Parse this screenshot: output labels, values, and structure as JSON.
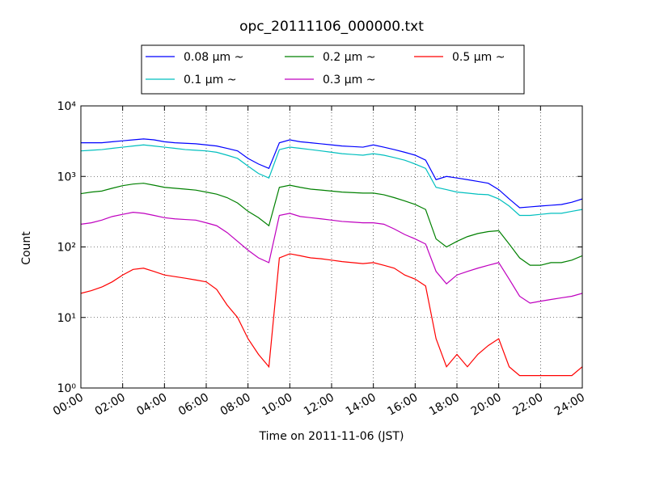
{
  "chart_data": {
    "type": "line",
    "title": "opc_20111106_000000.txt",
    "xlabel": "Time on 2011-11-06 (JST)",
    "ylabel": "Count",
    "x": [
      "00:00",
      "00:30",
      "01:00",
      "01:30",
      "02:00",
      "02:30",
      "03:00",
      "03:30",
      "04:00",
      "04:30",
      "05:00",
      "05:30",
      "06:00",
      "06:30",
      "07:00",
      "07:30",
      "08:00",
      "08:30",
      "09:00",
      "09:30",
      "10:00",
      "10:30",
      "11:00",
      "11:30",
      "12:00",
      "12:30",
      "13:00",
      "13:30",
      "14:00",
      "14:30",
      "15:00",
      "15:30",
      "16:00",
      "16:30",
      "17:00",
      "17:30",
      "18:00",
      "18:30",
      "19:00",
      "19:30",
      "20:00",
      "20:30",
      "21:00",
      "21:30",
      "22:00",
      "22:30",
      "23:00",
      "23:30",
      "24:00"
    ],
    "series": [
      {
        "name": "0.08 μm ~",
        "color": "#0000ff",
        "values": [
          3000,
          3000,
          3000,
          3100,
          3200,
          3300,
          3400,
          3300,
          3100,
          3000,
          2950,
          2900,
          2800,
          2700,
          2500,
          2300,
          1800,
          1500,
          1300,
          3000,
          3300,
          3100,
          3000,
          2900,
          2800,
          2700,
          2650,
          2600,
          2800,
          2600,
          2400,
          2200,
          2000,
          1700,
          900,
          1000,
          950,
          900,
          850,
          800,
          650,
          480,
          360,
          370,
          380,
          390,
          400,
          430,
          480
        ]
      },
      {
        "name": "0.1 μm ~",
        "color": "#00bfbf",
        "values": [
          2300,
          2350,
          2400,
          2500,
          2600,
          2700,
          2800,
          2700,
          2600,
          2500,
          2400,
          2350,
          2300,
          2200,
          2000,
          1800,
          1400,
          1100,
          950,
          2400,
          2600,
          2500,
          2400,
          2300,
          2200,
          2100,
          2050,
          2000,
          2100,
          2000,
          1850,
          1700,
          1500,
          1300,
          700,
          650,
          600,
          580,
          560,
          550,
          480,
          380,
          280,
          280,
          290,
          300,
          300,
          320,
          340
        ]
      },
      {
        "name": "0.2 μm ~",
        "color": "#008000",
        "values": [
          570,
          600,
          620,
          680,
          740,
          780,
          800,
          750,
          700,
          680,
          660,
          640,
          600,
          560,
          500,
          420,
          320,
          260,
          200,
          700,
          750,
          700,
          660,
          640,
          620,
          600,
          590,
          580,
          580,
          550,
          500,
          450,
          400,
          340,
          130,
          100,
          120,
          140,
          155,
          165,
          170,
          110,
          70,
          55,
          55,
          60,
          60,
          65,
          75
        ]
      },
      {
        "name": "0.3 μm ~",
        "color": "#bf00bf",
        "values": [
          210,
          220,
          240,
          270,
          290,
          310,
          300,
          280,
          260,
          250,
          245,
          240,
          220,
          200,
          160,
          120,
          90,
          70,
          60,
          280,
          300,
          270,
          260,
          250,
          240,
          230,
          225,
          220,
          220,
          210,
          180,
          150,
          130,
          110,
          45,
          30,
          40,
          45,
          50,
          55,
          60,
          35,
          20,
          16,
          17,
          18,
          19,
          20,
          22
        ]
      },
      {
        "name": "0.5 μm ~",
        "color": "#ff0000",
        "values": [
          22,
          24,
          27,
          32,
          40,
          48,
          50,
          45,
          40,
          38,
          36,
          34,
          32,
          25,
          15,
          10,
          5,
          3,
          2,
          70,
          80,
          75,
          70,
          68,
          65,
          62,
          60,
          58,
          60,
          55,
          50,
          40,
          35,
          28,
          5,
          2,
          3,
          2,
          3,
          4,
          5,
          2,
          1.5,
          1.5,
          1.5,
          1.5,
          1.5,
          1.5,
          2
        ]
      }
    ],
    "xlim": [
      "00:00",
      "24:00"
    ],
    "xticks": [
      "00:00",
      "02:00",
      "04:00",
      "06:00",
      "08:00",
      "10:00",
      "12:00",
      "14:00",
      "16:00",
      "18:00",
      "20:00",
      "22:00",
      "24:00"
    ],
    "ylim": [
      1,
      10000
    ],
    "log_y": true,
    "yticks": [
      {
        "value": 1,
        "label": "10⁰"
      },
      {
        "value": 10,
        "label": "10¹"
      },
      {
        "value": 100,
        "label": "10²"
      },
      {
        "value": 1000,
        "label": "10³"
      },
      {
        "value": 10000,
        "label": "10⁴"
      }
    ],
    "grid": true,
    "legend": "top"
  }
}
